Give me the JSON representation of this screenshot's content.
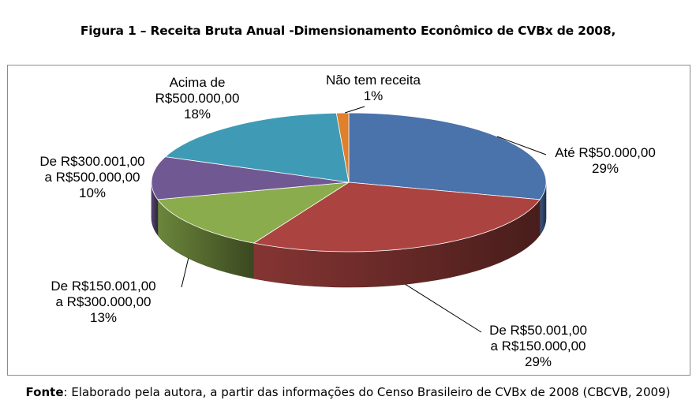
{
  "figure": {
    "title": "Figura 1 – Receita Bruta Anual -Dimensionamento Econômico de  CVBx de 2008,"
  },
  "chart_data": {
    "type": "pie",
    "title": "Figura 1 – Receita Bruta Anual -Dimensionamento Econômico de  CVBx de 2008,",
    "three_d": true,
    "slices": [
      {
        "label_lines": [
          "Até R$50.000,00"
        ],
        "pct_label": "29%",
        "value": 29,
        "color": "#4a72ab"
      },
      {
        "label_lines": [
          "De R$50.001,00",
          "a R$150.000,00"
        ],
        "pct_label": "29%",
        "value": 29,
        "color": "#ab4441"
      },
      {
        "label_lines": [
          "De R$150.001,00",
          "a R$300.000,00"
        ],
        "pct_label": "13%",
        "value": 13,
        "color": "#8aac4c"
      },
      {
        "label_lines": [
          "De R$300.001,00",
          "a R$500.000,00"
        ],
        "pct_label": "10%",
        "value": 10,
        "color": "#705993"
      },
      {
        "label_lines": [
          "Acima de",
          "R$500.000,00"
        ],
        "pct_label": "18%",
        "value": 18,
        "color": "#3f9bb5"
      },
      {
        "label_lines": [
          "Não tem receita"
        ],
        "pct_label": "1%",
        "value": 1,
        "color": "#e07f2c"
      }
    ]
  },
  "source": {
    "prefix": "Fonte",
    "text": ": Elaborado pela autora, a partir das informações do Censo Brasileiro de CVBx de 2008 (CBCVB, 2009)"
  }
}
